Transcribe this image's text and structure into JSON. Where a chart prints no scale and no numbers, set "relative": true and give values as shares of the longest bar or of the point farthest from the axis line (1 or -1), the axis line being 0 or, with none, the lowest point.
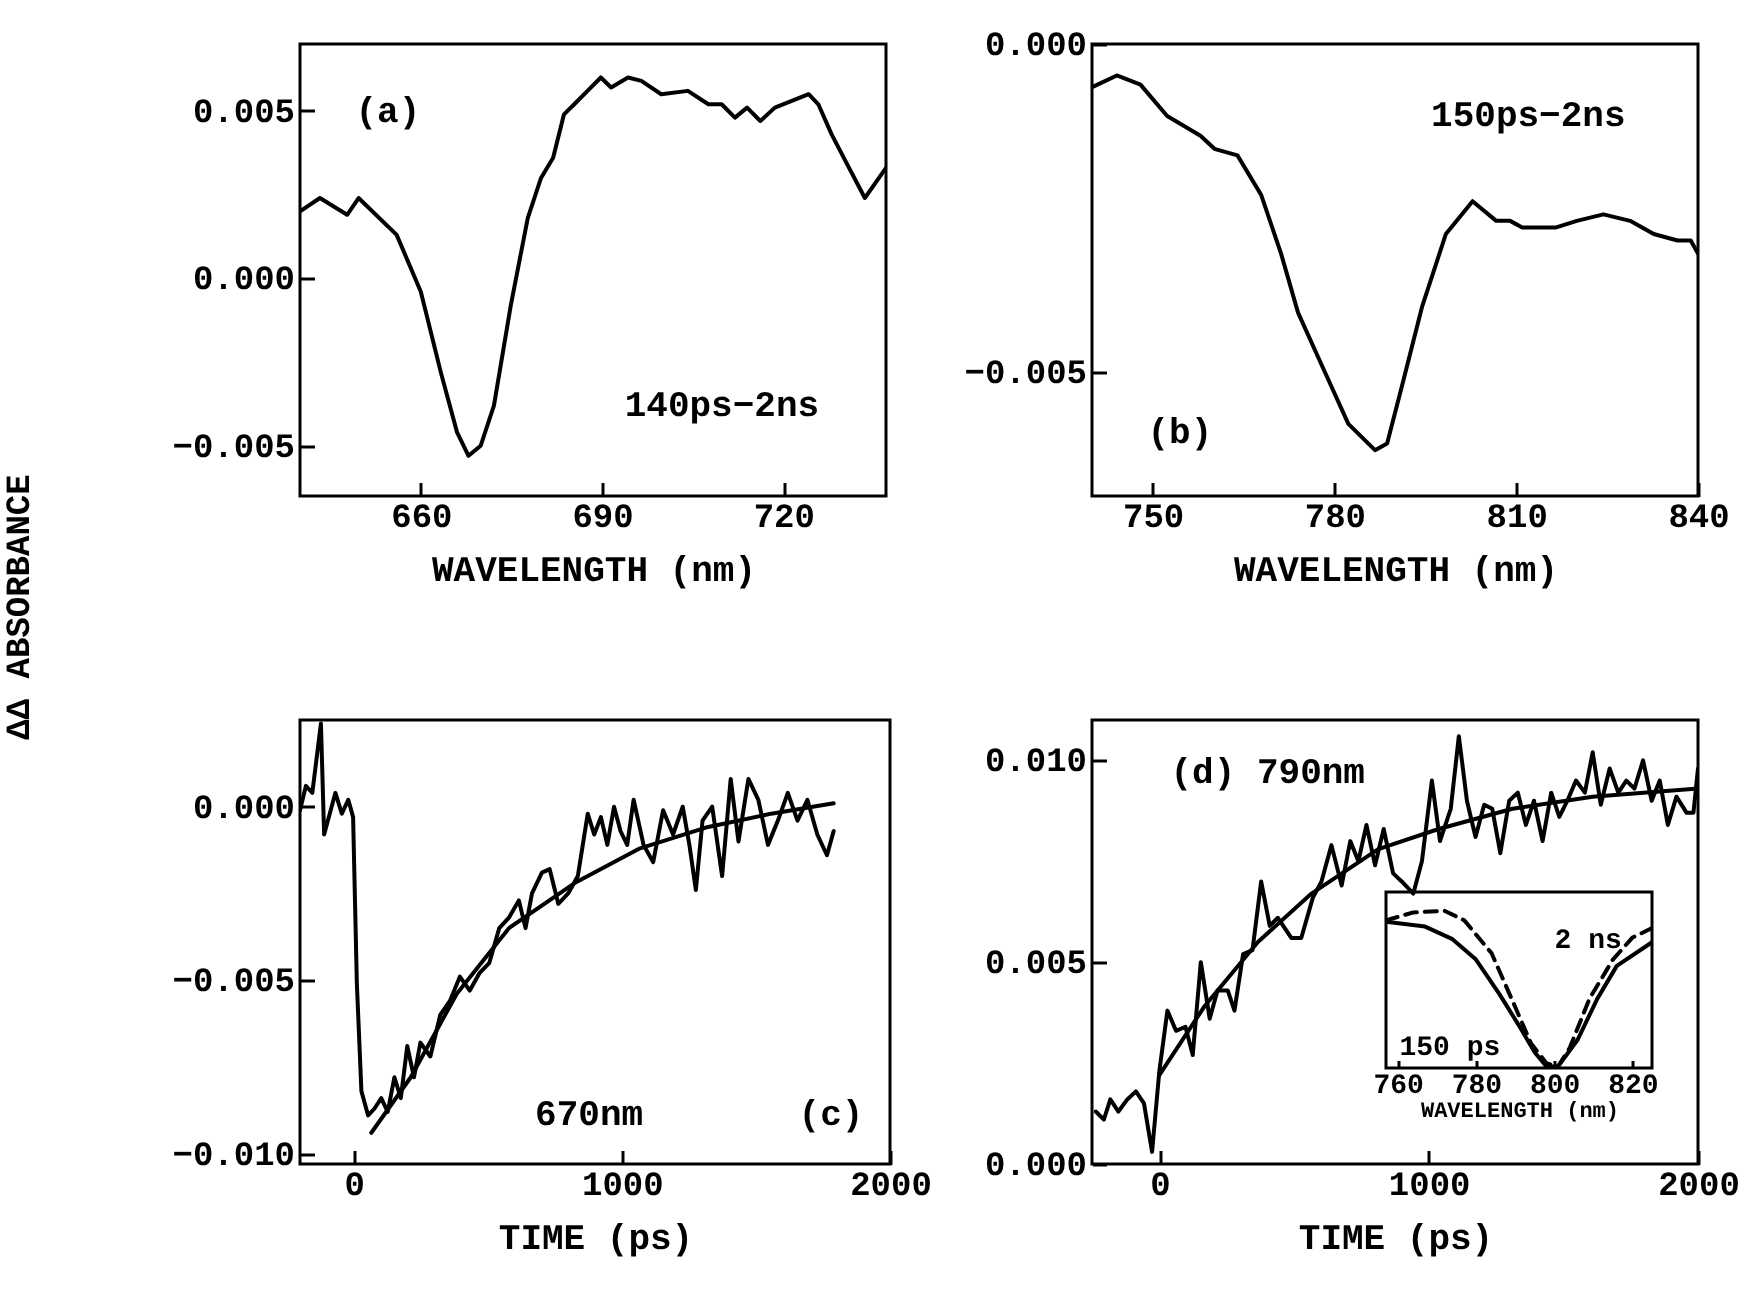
{
  "chart_data": [
    {
      "type": "line",
      "xlabel": "WAVELENGTH (nm)",
      "ylabel": "ΔΔ ABSORBANCE",
      "xlim": [
        640,
        737
      ],
      "ylim": [
        -0.0065,
        0.007
      ],
      "xticks": [
        660,
        690,
        720
      ],
      "yticks": [
        {
          "value": -0.005,
          "label": "−0.005"
        },
        {
          "value": 0,
          "label": "0.000"
        },
        {
          "value": 0.005,
          "label": "0.005"
        }
      ],
      "annotations": [
        "(a)",
        "140ps−2ns"
      ],
      "series": [
        {
          "color": "#000000",
          "x": [
            640,
            643.3,
            647.8,
            649.7,
            656,
            660,
            663.3,
            666,
            667.9,
            669.9,
            672.1,
            674.9,
            677.7,
            679.9,
            681.9,
            683.7,
            685.4,
            687.6,
            689.8,
            691.5,
            694.3,
            696.5,
            699.8,
            704.2,
            707.6,
            709.8,
            712,
            714,
            716.2,
            718.6,
            724.2,
            725.8,
            728,
            730.3,
            733.5,
            737
          ],
          "values": [
            0.002,
            0.0024,
            0.0019,
            0.0024,
            0.0013,
            -0.0004,
            -0.0028,
            -0.0046,
            -0.0053,
            -0.005,
            -0.0038,
            -0.0008,
            0.0018,
            0.003,
            0.0036,
            0.0049,
            0.0052,
            0.0056,
            0.006,
            0.0057,
            0.006,
            0.0059,
            0.0055,
            0.0056,
            0.0052,
            0.0052,
            0.0048,
            0.0051,
            0.0047,
            0.0051,
            0.0055,
            0.0052,
            0.0043,
            0.0035,
            0.0024,
            0.0033
          ]
        }
      ]
    },
    {
      "type": "line",
      "xlabel": "WAVELENGTH (nm)",
      "xlim": [
        740,
        840
      ],
      "ylim": [
        -0.0069,
        0
      ],
      "xticks": [
        750,
        780,
        810,
        840
      ],
      "yticks": [
        {
          "value": -0.005,
          "label": "−0.005"
        },
        {
          "value": 0,
          "label": "0.000"
        }
      ],
      "annotations": [
        "150ps−2ns",
        "(b)"
      ],
      "series": [
        {
          "color": "#000000",
          "x": [
            740.2,
            744.1,
            748,
            752.4,
            757.9,
            760.2,
            764,
            767.9,
            771.2,
            774,
            777.9,
            782.3,
            786.7,
            788.7,
            791.2,
            794.5,
            798.4,
            802.8,
            806.7,
            809,
            811,
            813.3,
            816.6,
            820,
            824.4,
            828.8,
            832.7,
            836.6,
            838.8,
            840
          ],
          "values": [
            -0.00065,
            -0.00048,
            -0.00062,
            -0.0011,
            -0.0014,
            -0.0016,
            -0.0017,
            -0.0023,
            -0.0032,
            -0.0041,
            -0.0049,
            -0.0058,
            -0.0062,
            -0.0061,
            -0.0052,
            -0.004,
            -0.0029,
            -0.0024,
            -0.0027,
            -0.0027,
            -0.0028,
            -0.0028,
            -0.0028,
            -0.0027,
            -0.0026,
            -0.0027,
            -0.0029,
            -0.003,
            -0.003,
            -0.0032
          ]
        }
      ]
    },
    {
      "type": "line",
      "xlabel": "TIME (ps)",
      "xlim": [
        -200,
        2000
      ],
      "ylim": [
        -0.0103,
        0.0025
      ],
      "xticks": [
        0,
        1000,
        2000
      ],
      "yticks": [
        {
          "value": -0.01,
          "label": "−0.010"
        },
        {
          "value": -0.005,
          "label": "−0.005"
        },
        {
          "value": 0,
          "label": "0.000"
        }
      ],
      "annotations": [
        "670nm",
        "(c)"
      ],
      "series": [
        {
          "color": "#000000",
          "x": [
            -200,
            -178,
            -154,
            -122,
            -110,
            -68,
            -44,
            -20,
            -2,
            12,
            29,
            54,
            78,
            103,
            127,
            152,
            176,
            200,
            225,
            249,
            286,
            323,
            359,
            396,
            433,
            469,
            506,
            543,
            579,
            616,
            641,
            665,
            702,
            731,
            763,
            800,
            836,
            873,
            897,
            922,
            946,
            971,
            995,
            1020,
            1044,
            1081,
            1117,
            1154,
            1191,
            1227,
            1252,
            1276,
            1301,
            1337,
            1374,
            1406,
            1435,
            1472,
            1509,
            1545,
            1582,
            1619,
            1655,
            1692,
            1729,
            1765,
            1790
          ],
          "values": [
            -0.0001,
            0.0006,
            0.0004,
            0.0024,
            -0.0008,
            0.0004,
            -0.0002,
            0.0002,
            -0.0003,
            -0.0051,
            -0.0082,
            -0.0089,
            -0.0087,
            -0.0084,
            -0.0088,
            -0.0078,
            -0.0084,
            -0.0069,
            -0.0078,
            -0.0068,
            -0.0072,
            -0.006,
            -0.0056,
            -0.0049,
            -0.0053,
            -0.0048,
            -0.0045,
            -0.0035,
            -0.0032,
            -0.0027,
            -0.0035,
            -0.0025,
            -0.0019,
            -0.0018,
            -0.0028,
            -0.0025,
            -0.002,
            -0.0002,
            -0.0008,
            -0.0003,
            -0.0011,
            0,
            -0.0007,
            -0.0011,
            0.0002,
            -0.0011,
            -0.0016,
            -0.0001,
            -0.0008,
            0,
            -0.0011,
            -0.0024,
            -0.0004,
            0,
            -0.002,
            0.0008,
            -0.001,
            0.0008,
            0.0002,
            -0.0011,
            -0.0004,
            0.0004,
            -0.0004,
            0.0002,
            -0.0008,
            -0.0014,
            -0.0007
          ]
        },
        {
          "type": "line",
          "color": "#000000",
          "x": [
            66,
            213,
            384,
            579,
            824,
            1068,
            1313,
            1557,
            1790
          ],
          "values": [
            -0.0094,
            -0.0078,
            -0.0054,
            -0.0035,
            -0.0022,
            -0.0012,
            -0.0006,
            -0.0002,
            0.0001
          ]
        }
      ]
    },
    {
      "type": "line",
      "xlabel": "TIME (ps)",
      "xlim": [
        -250,
        2000
      ],
      "ylim": [
        0,
        0.011
      ],
      "xticks": [
        0,
        1000,
        2000
      ],
      "yticks": [
        {
          "value": 0,
          "label": "0.000"
        },
        {
          "value": 0.005,
          "label": "0.005"
        },
        {
          "value": 0.01,
          "label": "0.010"
        }
      ],
      "annotations": [
        "(d) 790nm"
      ],
      "series": [
        {
          "color": "#000000",
          "x": [
            -236,
            -206,
            -182,
            -152,
            -119,
            -87,
            -57,
            -27,
            0,
            30,
            62,
            97,
            124,
            154,
            187,
            216,
            254,
            279,
            311,
            346,
            378,
            410,
            440,
            490,
            527,
            570,
            602,
            639,
            677,
            709,
            739,
            769,
            801,
            833,
            868,
            900,
            943,
            975,
            1012,
            1042,
            1082,
            1112,
            1142,
            1174,
            1206,
            1236,
            1266,
            1299,
            1331,
            1361,
            1391,
            1423,
            1455,
            1485,
            1515,
            1547,
            1580,
            1609,
            1639,
            1672,
            1704,
            1734,
            1764,
            1796,
            1828,
            1858,
            1888,
            1920,
            1958,
            1983,
            2000
          ],
          "values": [
            0.0013,
            0.0011,
            0.0016,
            0.0013,
            0.0016,
            0.0018,
            0.0015,
            0.0003,
            0.0023,
            0.0038,
            0.0033,
            0.0034,
            0.0027,
            0.005,
            0.0036,
            0.0043,
            0.0043,
            0.0038,
            0.0052,
            0.0053,
            0.007,
            0.0059,
            0.0061,
            0.0056,
            0.0056,
            0.0066,
            0.007,
            0.0079,
            0.0069,
            0.008,
            0.0075,
            0.0084,
            0.0074,
            0.0083,
            0.0072,
            0.007,
            0.0067,
            0.0075,
            0.0095,
            0.008,
            0.0088,
            0.0106,
            0.009,
            0.0081,
            0.0089,
            0.0088,
            0.0077,
            0.009,
            0.0092,
            0.0084,
            0.009,
            0.008,
            0.0092,
            0.0086,
            0.009,
            0.0095,
            0.0092,
            0.0102,
            0.0089,
            0.0098,
            0.0092,
            0.0095,
            0.0093,
            0.01,
            0.009,
            0.0095,
            0.0084,
            0.0091,
            0.0087,
            0.0087,
            0.0098
          ]
        },
        {
          "type": "line",
          "color": "#000000",
          "x": [
            0,
            167,
            366,
            565,
            813,
            1037,
            1311,
            1609,
            2000
          ],
          "values": [
            0.0022,
            0.0039,
            0.0055,
            0.0067,
            0.0078,
            0.0083,
            0.0088,
            0.0091,
            0.0093
          ]
        }
      ]
    },
    {
      "type": "line",
      "relative": true,
      "xlabel": "WAVELENGTH (nm)",
      "xlim": [
        757,
        825
      ],
      "xticks": [
        760,
        780,
        800,
        820
      ],
      "tick_labels": "x",
      "series": [
        {
          "name": "150 ps",
          "color": "#000000",
          "line_style": "solid",
          "x": [
            757,
            767,
            774,
            780,
            786,
            791,
            795,
            798,
            801,
            806,
            811,
            816,
            825
          ],
          "values": [
            0.93,
            0.9,
            0.82,
            0.69,
            0.47,
            0.27,
            0.1,
            0.01,
            0.01,
            0.18,
            0.44,
            0.65,
            0.8
          ]
        },
        {
          "name": "2 ns",
          "color": "#000000",
          "line_style": "dashed",
          "x": [
            757,
            764,
            772,
            777,
            784,
            790,
            794,
            798,
            801,
            804,
            809,
            815,
            820,
            825
          ],
          "values": [
            0.94,
            0.99,
            1,
            0.94,
            0.73,
            0.39,
            0.16,
            0.03,
            0.01,
            0.13,
            0.44,
            0.69,
            0.83,
            0.89
          ]
        }
      ]
    }
  ]
}
